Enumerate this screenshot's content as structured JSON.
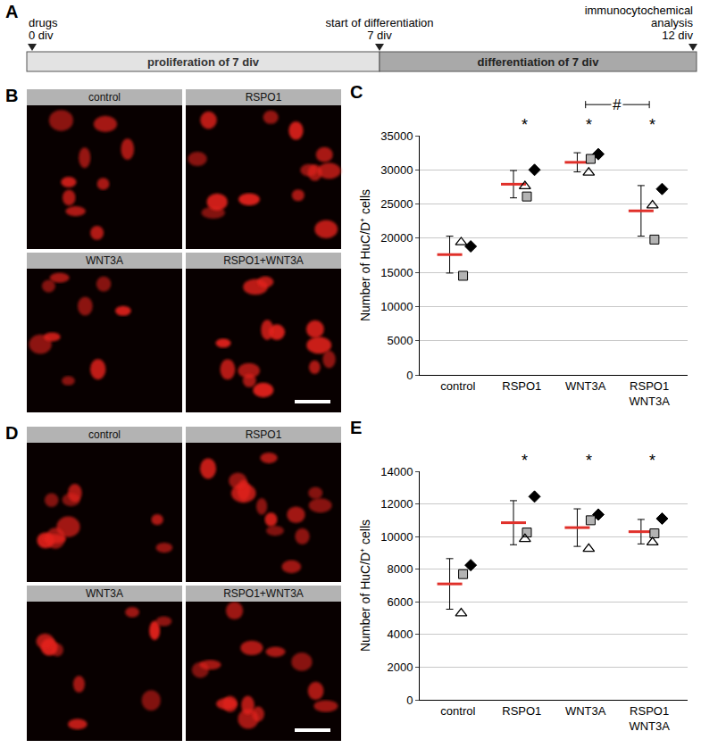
{
  "panel_letters": [
    "A",
    "B",
    "C",
    "D",
    "E"
  ],
  "timeline": {
    "events": [
      {
        "lines": [
          "drugs",
          "0 div"
        ]
      },
      {
        "lines": [
          "start of differentiation",
          "7 div"
        ]
      },
      {
        "lines": [
          "immunocytochemical",
          "analysis",
          "12 div"
        ]
      }
    ],
    "phases": [
      "proliferation of 7 div",
      "differentiation of 7 div"
    ]
  },
  "images": [
    {
      "tiles": [
        "control",
        "RSPO1",
        "WNT3A",
        "RSPO1+WNT3A"
      ]
    },
    {
      "tiles": [
        "control",
        "RSPO1",
        "WNT3A",
        "RSPO1+WNT3A"
      ]
    }
  ],
  "chart_data": [
    {
      "type": "scatter",
      "categories": [
        "control",
        "RSPO1",
        "WNT3A",
        "RSPO1 WNT3A"
      ],
      "y_label": "Number of HuC/D⁺ cells",
      "ylim": [
        0,
        35000
      ],
      "yticks": [
        0,
        5000,
        10000,
        15000,
        20000,
        25000,
        30000,
        35000
      ],
      "grid": true,
      "series": [
        {
          "type": "mean",
          "marker": "line-ew",
          "color": "#e0302a",
          "values": [
            17600,
            27900,
            31100,
            24000
          ],
          "error": [
            2700,
            2000,
            1400,
            3700
          ]
        },
        {
          "marker": "diamond",
          "color": "#000000",
          "values": [
            18800,
            30000,
            32300,
            27200
          ]
        },
        {
          "marker": "square",
          "color": "#b3b3b3",
          "values": [
            14500,
            26100,
            31600,
            19800
          ]
        },
        {
          "marker": "triangle-up-open",
          "color": "#000000",
          "values": [
            19400,
            27600,
            29600,
            24800
          ]
        }
      ],
      "annotations": [
        {
          "category": "RSPO1",
          "text": "*"
        },
        {
          "category": "WNT3A",
          "text": "*"
        },
        {
          "category": "RSPO1 WNT3A",
          "text": "*"
        }
      ],
      "brackets": [
        {
          "from": "WNT3A",
          "to": "RSPO1 WNT3A",
          "text": "#"
        }
      ]
    },
    {
      "type": "scatter",
      "categories": [
        "control",
        "RSPO1",
        "WNT3A",
        "RSPO1 WNT3A"
      ],
      "y_label": "Number of HuC/D⁺ cells",
      "ylim": [
        0,
        14000
      ],
      "yticks": [
        0,
        2000,
        4000,
        6000,
        8000,
        10000,
        12000,
        14000
      ],
      "grid": true,
      "series": [
        {
          "type": "mean",
          "marker": "line-ew",
          "color": "#e0302a",
          "values": [
            7100,
            10850,
            10550,
            10300
          ],
          "error": [
            1550,
            1350,
            1150,
            750
          ]
        },
        {
          "marker": "diamond",
          "color": "#000000",
          "values": [
            8250,
            12450,
            11350,
            11100
          ]
        },
        {
          "marker": "square",
          "color": "#b3b3b3",
          "values": [
            7700,
            10250,
            11000,
            10200
          ]
        },
        {
          "marker": "triangle-up-open",
          "color": "#000000",
          "values": [
            5300,
            9850,
            9250,
            9650
          ]
        }
      ],
      "annotations": [
        {
          "category": "RSPO1",
          "text": "*"
        },
        {
          "category": "WNT3A",
          "text": "*"
        },
        {
          "category": "RSPO1 WNT3A",
          "text": "*"
        }
      ],
      "brackets": []
    }
  ]
}
